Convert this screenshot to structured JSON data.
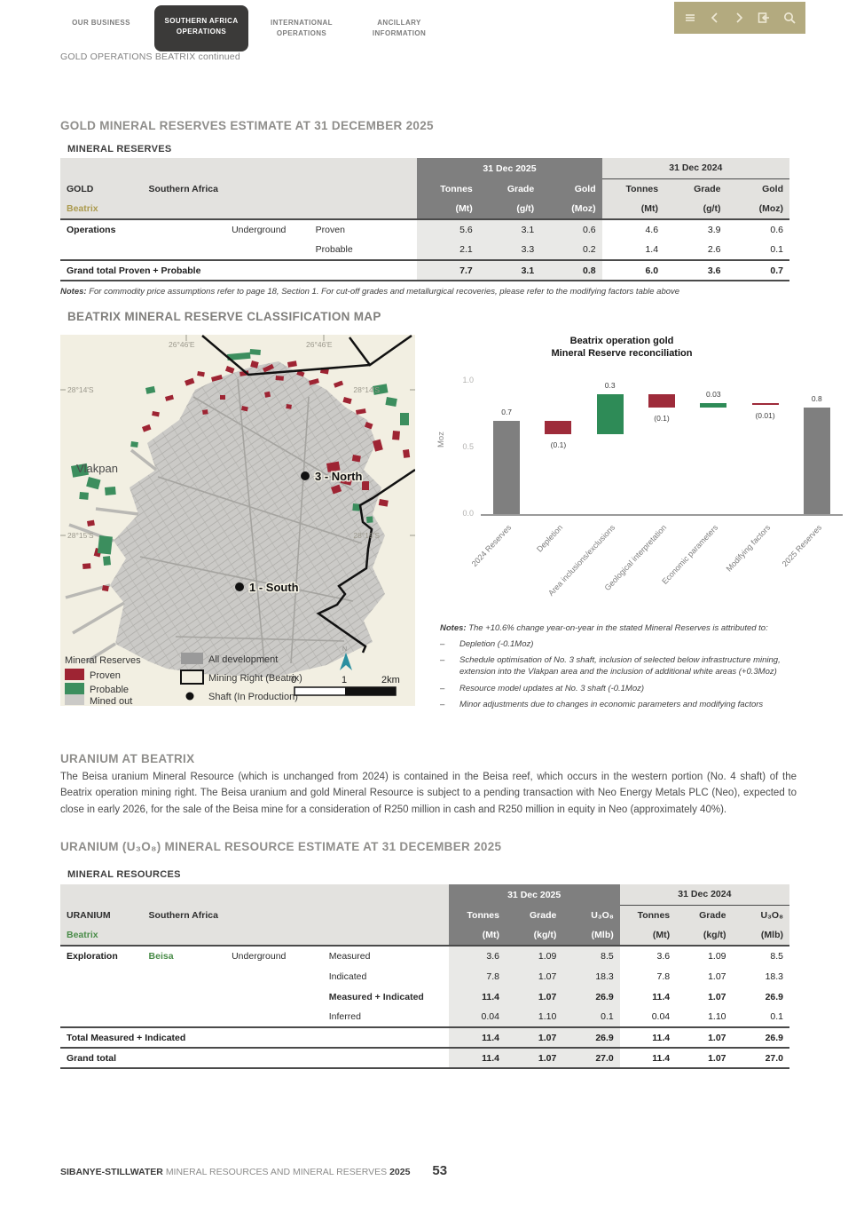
{
  "nav": {
    "tabs": [
      {
        "label": "OUR BUSINESS",
        "active": false
      },
      {
        "label": "SOUTHERN AFRICA OPERATIONS",
        "active": true
      },
      {
        "label": "INTERNATIONAL OPERATIONS",
        "active": false
      },
      {
        "label": "ANCILLARY INFORMATION",
        "active": false
      }
    ],
    "toolbar_icons": [
      "menu-icon",
      "chevron-left-icon",
      "chevron-right-icon",
      "exit-icon",
      "search-icon"
    ],
    "toolbar_bg": "#b3aa7f"
  },
  "breadcrumb": "GOLD OPERATIONS BEATRIX continued",
  "gold_section": {
    "title": "GOLD MINERAL RESERVES ESTIMATE AT 31 DECEMBER 2025",
    "subtitle": "MINERAL RESERVES",
    "table": {
      "year_2025": "31 Dec 2025",
      "year_2024": "31 Dec 2024",
      "commodity": "GOLD",
      "region": "Southern Africa",
      "operation": "Beatrix",
      "col_headers": [
        "Tonnes",
        "Grade",
        "Gold",
        "Tonnes",
        "Grade",
        "Gold"
      ],
      "col_units": [
        "(Mt)",
        "(g/t)",
        "(Moz)",
        "(Mt)",
        "(g/t)",
        "(Moz)"
      ],
      "rows": [
        {
          "cells": [
            "Operations",
            "",
            "Underground",
            "Proven",
            "5.6",
            "3.1",
            "0.6",
            "4.6",
            "3.9",
            "0.6"
          ]
        },
        {
          "cells": [
            "",
            "",
            "",
            "Probable",
            "2.1",
            "3.3",
            "0.2",
            "1.4",
            "2.6",
            "0.1"
          ]
        }
      ],
      "total_rows": [
        {
          "cells": [
            "Grand total Proven + Probable",
            "7.7",
            "3.1",
            "0.8",
            "6.0",
            "3.6",
            "0.7"
          ],
          "lead_span": 4,
          "style": "grand"
        }
      ],
      "notes_label": "Notes:",
      "notes": "For commodity price assumptions refer to page 18, Section 1. For cut-off grades and metallurgical recoveries, please refer to the modifying factors table above"
    }
  },
  "map_section": {
    "title": "BEATRIX MINERAL RESERVE CLASSIFICATION MAP",
    "labels": {
      "area": "Vlakpan",
      "shaft_north": "3 - North",
      "shaft_south": "1 - South"
    },
    "coords": {
      "lon": "26°46'E",
      "lat_top": "28°14'S",
      "lat_bottom": "28°15'S"
    },
    "legend": {
      "reserves_title": "Mineral Reserves",
      "proven": "Proven",
      "probable": "Probable",
      "mined_out": "Mined out",
      "all_development": "All development",
      "mining_right": "Mining Right (Beatrix)",
      "shaft": "Shaft (In Production)"
    },
    "scale": {
      "t0": "0",
      "t1": "1",
      "t2": "2km"
    },
    "colors": {
      "proven": "#9e2433",
      "probable": "#3c8e5e",
      "mined_out": "#cbcac7",
      "development": "#9a9a9a",
      "background": "#f2efe2"
    }
  },
  "chart_data": {
    "type": "bar",
    "subtype": "waterfall",
    "title": "Beatrix operation gold Mineral Reserve reconciliation",
    "title_lines": [
      "Beatrix operation gold",
      "Mineral Reserve reconciliation"
    ],
    "ylabel": "Moz",
    "ylim": [
      0,
      1.0
    ],
    "yticks": [
      "0.0",
      "0.5",
      "1.0"
    ],
    "ytick_values": [
      0,
      0.5,
      1.0
    ],
    "grid": false,
    "legend_position": "none",
    "categories": [
      "2024 Reserves",
      "Depletion",
      "Area inclusions/exclusions",
      "Geological interpretation",
      "Economic parameters",
      "Modifying factors",
      "2025 Reserves"
    ],
    "values": [
      0.7,
      -0.1,
      0.3,
      -0.1,
      0.03,
      -0.01,
      0.8
    ],
    "labels": [
      "0.7",
      "(0.1)",
      "0.3",
      "(0.1)",
      "0.03",
      "(0.01)",
      "0.8"
    ],
    "bar_types": [
      "total",
      "delta",
      "delta",
      "delta",
      "delta",
      "delta",
      "total"
    ],
    "colors": {
      "total": "#7f7f7f",
      "positive": "#2e8b57",
      "negative": "#9e2b3a"
    }
  },
  "chart_notes": {
    "label": "Notes:",
    "intro": "The +10.6% change year-on-year in the stated Mineral Reserves is attributed to:",
    "bullets": [
      "Depletion (-0.1Moz)",
      "Schedule optimisation of No. 3 shaft, inclusion of selected below infrastructure mining, extension into the Vlakpan area and the inclusion of additional white areas (+0.3Moz)",
      "Resource model updates at No. 3 shaft (-0.1Moz)",
      "Minor adjustments due to changes in economic parameters and modifying factors"
    ]
  },
  "uranium_section": {
    "heading": "URANIUM AT BEATRIX",
    "paragraph": "The Beisa uranium Mineral Resource (which is unchanged from 2024) is contained in the Beisa reef, which occurs in the western portion (No. 4 shaft) of the Beatrix operation mining right. The Beisa uranium and gold Mineral Resource is subject to a pending transaction with Neo Energy Metals PLC (Neo), expected to close in early 2026, for the sale of the Beisa mine for a consideration of R250 million in cash and R250 million in equity in Neo (approximately 40%).",
    "title": "URANIUM (U₃O₈) MINERAL RESOURCE ESTIMATE AT 31 DECEMBER 2025",
    "subtitle": "MINERAL RESOURCES",
    "table": {
      "year_2025": "31 Dec 2025",
      "year_2024": "31 Dec 2024",
      "commodity": "URANIUM",
      "region": "Southern Africa",
      "operation": "Beatrix",
      "col_headers": [
        "Tonnes",
        "Grade",
        "U₃O₈",
        "Tonnes",
        "Grade",
        "U₃O₈"
      ],
      "col_units": [
        "(Mt)",
        "(kg/t)",
        "(Mlb)",
        "(Mt)",
        "(kg/t)",
        "(Mlb)"
      ],
      "rows": [
        {
          "cells": [
            "Exploration",
            "Beisa",
            "Underground",
            "Measured",
            "3.6",
            "1.09",
            "8.5",
            "3.6",
            "1.09",
            "8.5"
          ]
        },
        {
          "cells": [
            "",
            "",
            "",
            "Indicated",
            "7.8",
            "1.07",
            "18.3",
            "7.8",
            "1.07",
            "18.3"
          ]
        },
        {
          "cells": [
            "",
            "",
            "",
            "Measured + Indicated",
            "11.4",
            "1.07",
            "26.9",
            "11.4",
            "1.07",
            "26.9"
          ],
          "style": "bold"
        },
        {
          "cells": [
            "",
            "",
            "",
            "Inferred",
            "0.04",
            "1.10",
            "0.1",
            "0.04",
            "1.10",
            "0.1"
          ]
        }
      ],
      "total_rows": [
        {
          "cells": [
            "Total Measured + Indicated",
            "11.4",
            "1.07",
            "26.9",
            "11.4",
            "1.07",
            "26.9"
          ],
          "lead_span": 4,
          "style": "total"
        },
        {
          "cells": [
            "Grand total",
            "11.4",
            "1.07",
            "27.0",
            "11.4",
            "1.07",
            "27.0"
          ],
          "lead_span": 4,
          "style": "grand"
        }
      ]
    }
  },
  "footer": {
    "brand": "SIBANYE-STILLWATER",
    "title": "MINERAL RESOURCES AND MINERAL RESERVES",
    "year": "2025",
    "page": "53"
  },
  "colors": {
    "accent_gold": "#ab9a4e",
    "accent_green": "#4a8c49",
    "header_dark": "#7f7f7f",
    "header_light": "#e3e2df",
    "shade_2025": "#e9e9e7",
    "tab_active_bg": "#3b3a39",
    "toolbar_bg": "#b3aa7f"
  }
}
